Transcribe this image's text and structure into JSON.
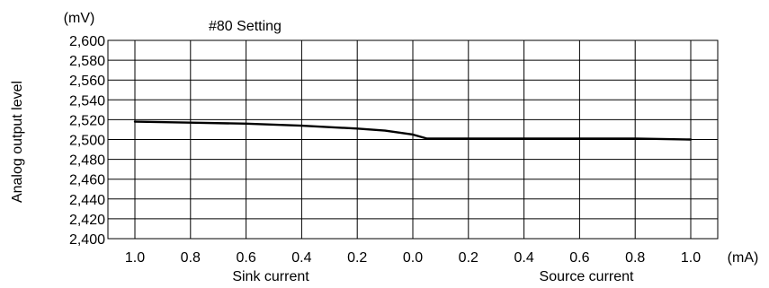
{
  "chart_data": {
    "type": "line",
    "title": "#80 Setting",
    "ylabel": "Analog output level",
    "y_unit": "(mV)",
    "x_unit": "(mA)",
    "ylim": [
      2400,
      2600
    ],
    "y_ticks": [
      2400,
      2420,
      2440,
      2460,
      2480,
      2500,
      2520,
      2540,
      2560,
      2580,
      2600
    ],
    "y_tick_labels": [
      "2,400",
      "2,420",
      "2,440",
      "2,460",
      "2,480",
      "2,500",
      "2,520",
      "2,540",
      "2,560",
      "2,580",
      "2,600"
    ],
    "x_tick_labels": [
      "1.0",
      "0.8",
      "0.6",
      "0.4",
      "0.2",
      "0.0",
      "0.2",
      "0.4",
      "0.6",
      "0.8",
      "1.0"
    ],
    "x_group_labels": [
      "Sink current",
      "Source current"
    ],
    "grid": true,
    "series": [
      {
        "x": [
          "1.0 (sink)",
          "0.8 (sink)",
          "0.6 (sink)",
          "0.4 (sink)",
          "0.2 (sink)",
          "0.1 (sink)",
          "0.0",
          "0.05 (source)",
          "0.2 (source)",
          "0.4 (source)",
          "0.6 (source)",
          "0.8 (source)",
          "1.0 (source)"
        ],
        "values": [
          2518,
          2517,
          2516,
          2514,
          2511,
          2509,
          2505,
          2501,
          2501,
          2501,
          2501,
          2501,
          2500
        ]
      }
    ]
  }
}
